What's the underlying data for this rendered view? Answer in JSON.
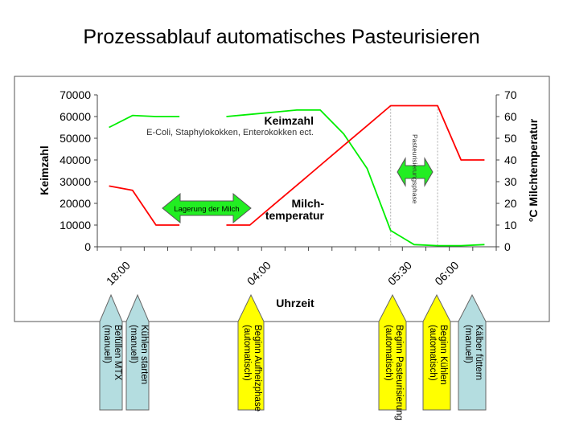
{
  "chart_data": {
    "type": "line",
    "title": "Prozessablauf automatisches Pasteurisieren",
    "xlabel": "Uhrzeit",
    "ylabel_left": "Keimzahl",
    "ylabel_right": "°C Milchtemperatur",
    "ylim_left": [
      0,
      70000
    ],
    "ylim_right": [
      0,
      70
    ],
    "yticks_left": [
      "0",
      "10000",
      "20000",
      "30000",
      "40000",
      "50000",
      "60000",
      "70000"
    ],
    "yticks_right": [
      "0",
      "10",
      "20",
      "30",
      "40",
      "50",
      "60",
      "70"
    ],
    "categories": [
      "",
      "18:00",
      "",
      "",
      "",
      "",
      "",
      "04:00",
      "",
      "",
      "",
      "",
      "",
      "05:30",
      "",
      "06:00",
      ""
    ],
    "grid": false,
    "series": [
      {
        "name": "Keimzahl",
        "axis": "left",
        "color": "#00ee00",
        "values": [
          55000,
          60500,
          60000,
          60000,
          null,
          60000,
          61000,
          62000,
          63000,
          63000,
          52000,
          36000,
          7500,
          1000,
          500,
          500,
          1000
        ]
      },
      {
        "name": "Milchtemperatur",
        "axis": "right",
        "color": "#ff0000",
        "values": [
          28,
          26,
          10,
          10,
          null,
          10,
          10,
          19.2,
          28.3,
          37.5,
          46.7,
          55.8,
          65,
          65,
          65,
          40,
          40
        ]
      }
    ],
    "annotations": {
      "keimzahl_label": "Keimzahl",
      "keimzahl_sub": "E-Coli, Staphylokokken,  Enterokokken ect.",
      "temp_label_1": "Milch-",
      "temp_label_2": "temperatur",
      "lagerung": "Lagerung der Milch",
      "pasteur_phase": "Pasteurisierungsphase"
    },
    "markers": [
      {
        "line1": "Befüllen MTX",
        "line2": "(manuell)",
        "color": "#b4dde0",
        "kind": "manuell"
      },
      {
        "line1": "Kühlen starten",
        "line2": "(manuell)",
        "color": "#b4dde0",
        "kind": "manuell"
      },
      {
        "line1": "Beginn Aufheizphase",
        "line2": "(automatisch)",
        "color": "#ffff00",
        "kind": "automatisch"
      },
      {
        "line1": "Beginn Pasteurisierung",
        "line2": "(automatisch)",
        "color": "#ffff00",
        "kind": "automatisch"
      },
      {
        "line1": "Beginn Kühlen",
        "line2": "(automatisch)",
        "color": "#ffff00",
        "kind": "automatisch"
      },
      {
        "line1": "Kälber füttern",
        "line2": "(manuell)",
        "color": "#b4dde0",
        "kind": "manuell"
      }
    ]
  }
}
